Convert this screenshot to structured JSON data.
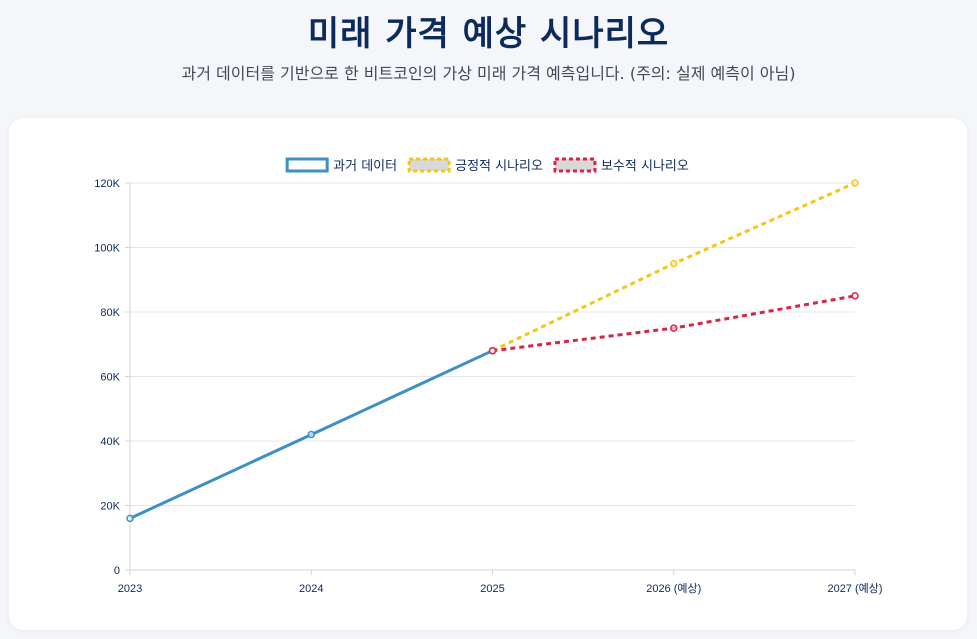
{
  "page": {
    "title": "미래 가격 예상 시나리오",
    "subtitle": "과거 데이터를 기반으로 한 비트코인의 가상 미래 가격 예측입니다. (주의: 실제 예측이 아님)"
  },
  "chart_data": {
    "type": "line",
    "categories": [
      "2023",
      "2024",
      "2025",
      "2026 (예상)",
      "2027 (예상)"
    ],
    "ylim": [
      0,
      120000
    ],
    "yticks": [
      {
        "value": 0,
        "label": "0"
      },
      {
        "value": 20000,
        "label": "20K"
      },
      {
        "value": 40000,
        "label": "40K"
      },
      {
        "value": 60000,
        "label": "60K"
      },
      {
        "value": 80000,
        "label": "80K"
      },
      {
        "value": 100000,
        "label": "100K"
      },
      {
        "value": 120000,
        "label": "120K"
      }
    ],
    "series": [
      {
        "name": "과거 데이터",
        "key": "historical",
        "color": "#3d8fc6",
        "dashed": false,
        "values": [
          16000,
          42000,
          68000,
          null,
          null
        ]
      },
      {
        "name": "긍정적 시나리오",
        "key": "positive",
        "color": "#f5c518",
        "dashed": true,
        "values": [
          null,
          null,
          68000,
          95000,
          120000
        ]
      },
      {
        "name": "보수적 시나리오",
        "key": "conservative",
        "color": "#d6254a",
        "dashed": true,
        "values": [
          null,
          null,
          68000,
          75000,
          85000
        ]
      }
    ],
    "legend_position": "top-center",
    "grid": true
  }
}
